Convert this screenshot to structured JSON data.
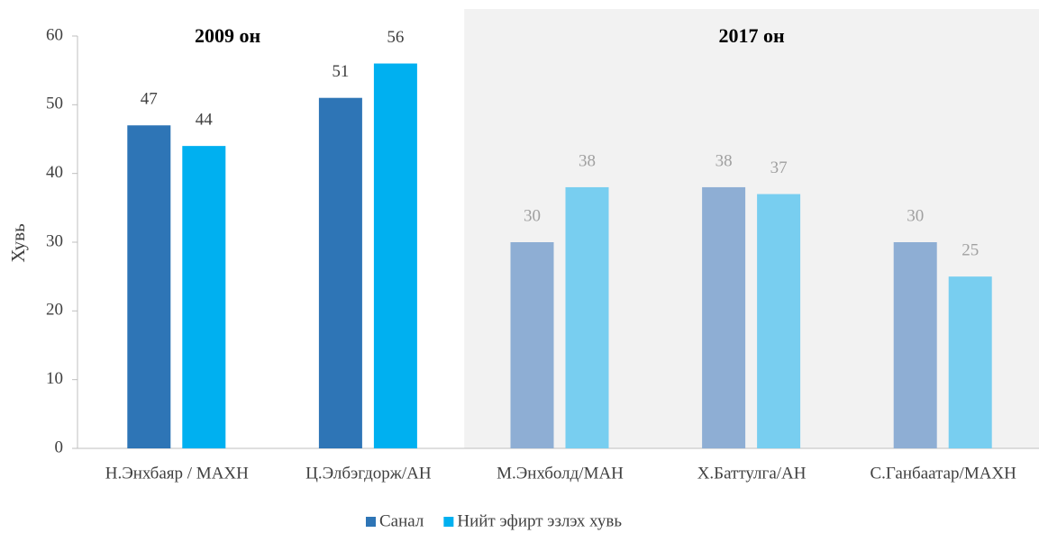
{
  "chart_data": {
    "type": "bar",
    "y_label": "Хувь",
    "categories": [
      "Н.Энхбаяр / МАХН",
      "Ц.Элбэгдорж/АН",
      "М.Энхболд/МАН",
      "Х.Баттулга/АН",
      "С.Ганбаатар/МАХН"
    ],
    "series": [
      {
        "name": "Санал",
        "color": "#2e75b6",
        "colors": [
          "#2e75b6",
          "#2e75b6",
          "#8eaed4",
          "#8eaed4",
          "#8eaed4"
        ],
        "values": [
          47,
          51,
          30,
          38,
          30
        ]
      },
      {
        "name": "Нийт эфирт эзлэх хувь",
        "color": "#00b0f0",
        "colors": [
          "#00b0f0",
          "#00b0f0",
          "#78cef0",
          "#78cef0",
          "#78cef0"
        ],
        "values": [
          44,
          56,
          38,
          37,
          25
        ]
      }
    ],
    "regions": [
      {
        "label": "2009 он",
        "categories": [
          0,
          1
        ],
        "value_label_color": "#404040"
      },
      {
        "label": "2017 он",
        "categories": [
          2,
          4
        ],
        "background": "#f2f2f2",
        "value_label_color": "#a0a0a0"
      }
    ],
    "ylim": [
      0,
      60
    ],
    "yticks": [
      0,
      10,
      20,
      30,
      40,
      50,
      60
    ],
    "grid": false,
    "legend": "bottom"
  }
}
